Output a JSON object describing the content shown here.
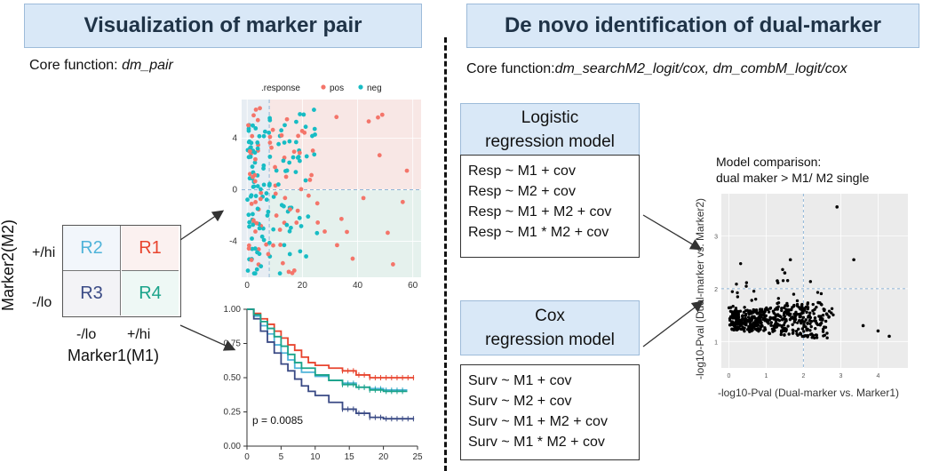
{
  "left_panel": {
    "title": "Visualization of marker pair",
    "core_function_prefix": "Core function: ",
    "core_function_name": "dm_pair"
  },
  "right_panel": {
    "title": "De novo identification of dual-marker",
    "core_function_prefix": "Core function:",
    "core_function_name": "dm_searchM2_logit/cox, dm_combM_logit/cox"
  },
  "quadrant": {
    "y_axis_label": "Marker2(M2)",
    "x_axis_label": "Marker1(M1)",
    "row_labels": [
      "+/hi",
      "-/lo"
    ],
    "col_labels": [
      "-/lo",
      "+/hi"
    ],
    "cells": [
      {
        "label": "R2",
        "color": "#4fb3d9"
      },
      {
        "label": "R1",
        "color": "#e8442e"
      },
      {
        "label": "R3",
        "color": "#3a4a85"
      },
      {
        "label": "R4",
        "color": "#1aa38a"
      }
    ]
  },
  "logistic_model": {
    "title_line1": "Logistic",
    "title_line2": "regression model",
    "formulas": [
      "Resp ~ M1 + cov",
      "Resp ~ M2 + cov",
      "Resp ~ M1 + M2 + cov",
      "Resp ~ M1 * M2 + cov"
    ]
  },
  "cox_model": {
    "title_line1": "Cox",
    "title_line2": "regression model",
    "formulas": [
      "Surv ~ M1 + cov",
      "Surv ~ M2 + cov",
      "Surv ~ M1 + M2 + cov",
      "Surv ~ M1 * M2 + cov"
    ]
  },
  "comparison": {
    "title_line1": "Model comparison:",
    "title_line2": "dual maker > M1/ M2 single"
  },
  "chart_data": [
    {
      "type": "scatter",
      "legend_title": ".response",
      "legend_position": "top",
      "series": [
        {
          "name": "pos",
          "color": "#f4756a"
        },
        {
          "name": "neg",
          "color": "#17bcc4"
        }
      ],
      "x_ticks": [
        "0",
        "20",
        "40",
        "60"
      ],
      "y_ticks": [
        "4",
        "0",
        "-4"
      ],
      "xlim": [
        -2,
        63
      ],
      "ylim": [
        -6.8,
        7
      ],
      "cutoff_x": 8,
      "cutoff_y": 0
    },
    {
      "type": "line",
      "annotation": "p = 0.0085",
      "x_ticks": [
        "0",
        "5",
        "10",
        "15",
        "20",
        "25"
      ],
      "y_ticks": [
        "1.00",
        "0.75",
        "0.50",
        "0.25",
        "0.00"
      ],
      "xlim": [
        0,
        25
      ],
      "ylim": [
        0,
        1
      ],
      "series": [
        {
          "name": "R1",
          "color": "#e8442e",
          "points": [
            [
              0,
              1
            ],
            [
              1,
              0.97
            ],
            [
              2,
              0.93
            ],
            [
              3,
              0.89
            ],
            [
              4,
              0.84
            ],
            [
              5,
              0.79
            ],
            [
              6,
              0.74
            ],
            [
              7,
              0.7
            ],
            [
              8,
              0.65
            ],
            [
              9,
              0.61
            ],
            [
              10,
              0.59
            ],
            [
              12,
              0.57
            ],
            [
              14,
              0.55
            ],
            [
              16,
              0.52
            ],
            [
              18,
              0.5
            ],
            [
              24.5,
              0.5
            ]
          ]
        },
        {
          "name": "R2",
          "color": "#4fb3d9",
          "points": [
            [
              0,
              1
            ],
            [
              1,
              0.95
            ],
            [
              2,
              0.88
            ],
            [
              3,
              0.82
            ],
            [
              4,
              0.74
            ],
            [
              5,
              0.68
            ],
            [
              6,
              0.63
            ],
            [
              7,
              0.57
            ],
            [
              8,
              0.54
            ],
            [
              10,
              0.51
            ],
            [
              12,
              0.48
            ],
            [
              14,
              0.46
            ],
            [
              16,
              0.43
            ],
            [
              18,
              0.42
            ],
            [
              20,
              0.41
            ],
            [
              23.5,
              0.41
            ]
          ]
        },
        {
          "name": "R3",
          "color": "#3a4a85",
          "points": [
            [
              0,
              1
            ],
            [
              1,
              0.93
            ],
            [
              2,
              0.84
            ],
            [
              3,
              0.76
            ],
            [
              4,
              0.68
            ],
            [
              5,
              0.6
            ],
            [
              6,
              0.55
            ],
            [
              7,
              0.49
            ],
            [
              8,
              0.44
            ],
            [
              9,
              0.4
            ],
            [
              10,
              0.37
            ],
            [
              12,
              0.32
            ],
            [
              14,
              0.27
            ],
            [
              16,
              0.24
            ],
            [
              18,
              0.21
            ],
            [
              20,
              0.2
            ],
            [
              24.5,
              0.2
            ]
          ]
        },
        {
          "name": "R4",
          "color": "#1aa38a",
          "points": [
            [
              0,
              1
            ],
            [
              1,
              0.96
            ],
            [
              2,
              0.91
            ],
            [
              3,
              0.86
            ],
            [
              4,
              0.8
            ],
            [
              5,
              0.73
            ],
            [
              6,
              0.67
            ],
            [
              7,
              0.61
            ],
            [
              8,
              0.57
            ],
            [
              10,
              0.52
            ],
            [
              12,
              0.48
            ],
            [
              14,
              0.45
            ],
            [
              16,
              0.43
            ],
            [
              18,
              0.41
            ],
            [
              20,
              0.4
            ],
            [
              23.5,
              0.4
            ]
          ]
        }
      ]
    },
    {
      "type": "scatter",
      "xlabel": "-log10-Pval (Dual-marker vs. Marker1)",
      "ylabel": "-log10-Pval (Dual-marker vs. Marker2)",
      "x_ticks": [
        "0",
        "1",
        "2",
        "3",
        "4"
      ],
      "y_ticks": [
        "1",
        "2",
        "3"
      ],
      "xlim": [
        -0.2,
        4.8
      ],
      "ylim": [
        0.5,
        3.8
      ],
      "threshold_x": 2,
      "threshold_y": 2,
      "color": "#000000"
    }
  ]
}
